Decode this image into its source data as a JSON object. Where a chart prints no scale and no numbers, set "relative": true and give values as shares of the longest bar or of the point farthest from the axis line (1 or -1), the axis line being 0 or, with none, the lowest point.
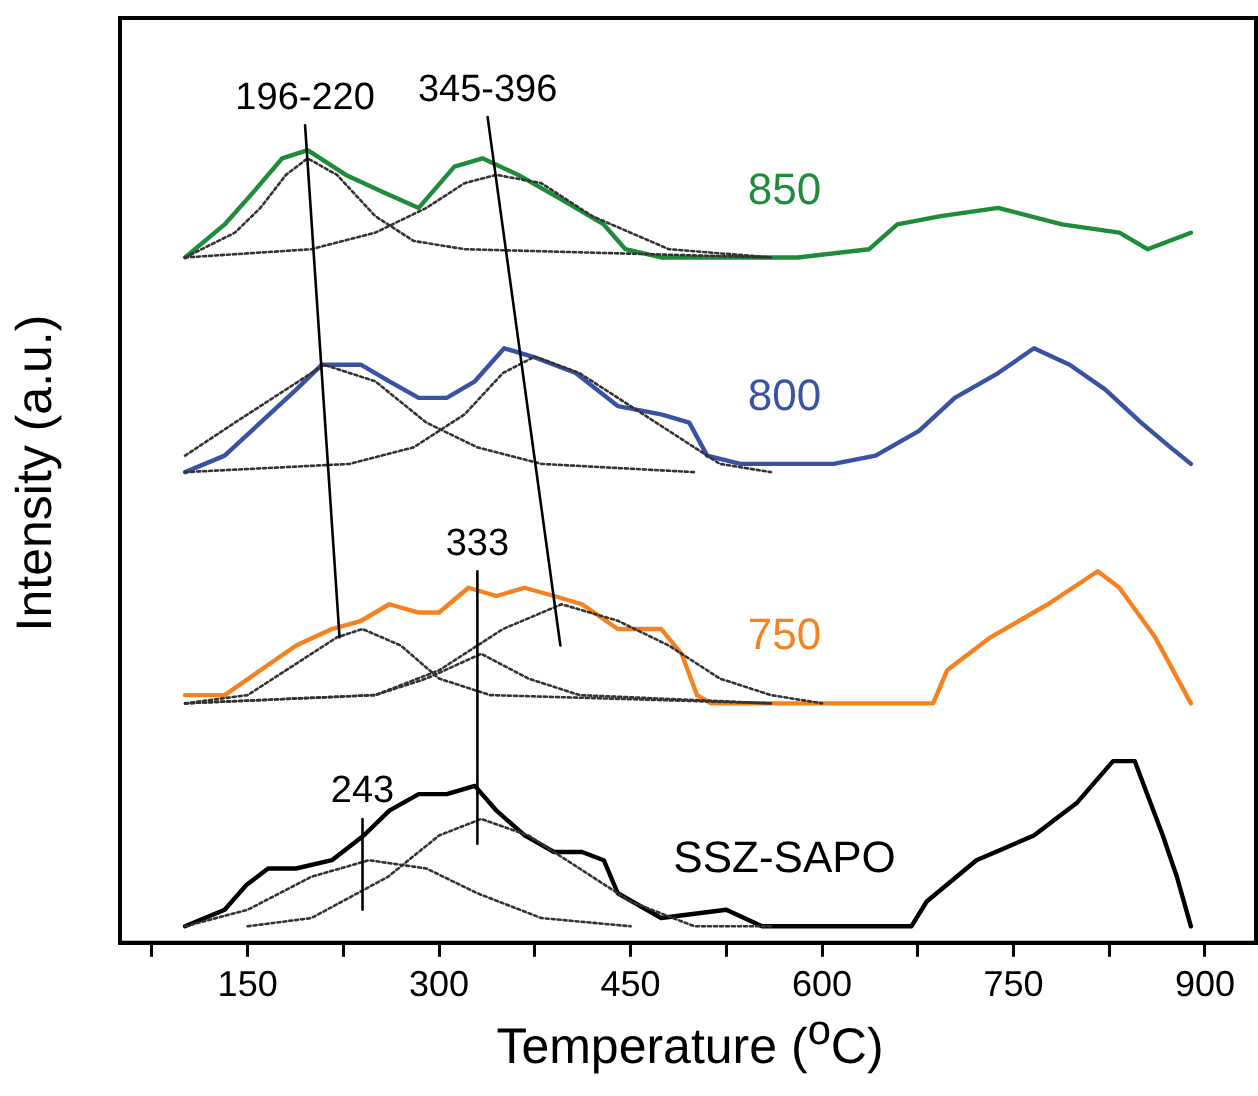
{
  "chart_data": {
    "type": "line",
    "relative": true,
    "xlabel": "Temperature ($^{o}$C)",
    "ylabel": "Intensity (a.u.)",
    "xlim": [
      50,
      940
    ],
    "xticks": [
      {
        "value": 75,
        "label": null
      },
      150,
      {
        "value": 225,
        "label": null
      },
      300,
      {
        "value": 375,
        "label": null
      },
      450,
      {
        "value": 525,
        "label": null
      },
      600,
      {
        "value": 675,
        "label": null
      },
      750,
      {
        "value": 825,
        "label": null
      },
      900
    ],
    "grid": false,
    "legend": false,
    "series": [
      {
        "name": "850",
        "color": "#1e8c3a",
        "line_style": "solid",
        "x": [
          101,
          132,
          155,
          177,
          197,
          227,
          255,
          284,
          312,
          334,
          362,
          396,
          429,
          446,
          474,
          525,
          581,
          637,
          659,
          693,
          738,
          788,
          833,
          855,
          889
        ],
        "values": [
          0.83,
          0.87,
          0.91,
          0.95,
          0.96,
          0.93,
          0.91,
          0.89,
          0.94,
          0.95,
          0.93,
          0.9,
          0.87,
          0.84,
          0.83,
          0.83,
          0.83,
          0.84,
          0.87,
          0.88,
          0.89,
          0.87,
          0.86,
          0.84,
          0.86
        ]
      },
      {
        "name": "800",
        "color": "#3a52a4",
        "line_style": "solid",
        "x": [
          101,
          132,
          160,
          188,
          208,
          239,
          261,
          284,
          306,
          328,
          351,
          373,
          407,
          440,
          474,
          496,
          510,
          536,
          581,
          609,
          642,
          676,
          704,
          738,
          766,
          794,
          822,
          850,
          873,
          889
        ],
        "values": [
          0.57,
          0.59,
          0.63,
          0.67,
          0.7,
          0.7,
          0.68,
          0.66,
          0.66,
          0.68,
          0.72,
          0.71,
          0.69,
          0.65,
          0.64,
          0.63,
          0.59,
          0.58,
          0.58,
          0.58,
          0.59,
          0.62,
          0.66,
          0.69,
          0.72,
          0.7,
          0.67,
          0.63,
          0.6,
          0.58
        ]
      },
      {
        "name": "750",
        "color": "#f58220",
        "line_style": "solid",
        "x": [
          101,
          132,
          160,
          188,
          216,
          239,
          261,
          284,
          300,
          323,
          345,
          367,
          390,
          412,
          440,
          474,
          490,
          502,
          513,
          552,
          609,
          665,
          687,
          698,
          732,
          777,
          816,
          833,
          861,
          889
        ],
        "values": [
          0.3,
          0.3,
          0.33,
          0.36,
          0.38,
          0.39,
          0.41,
          0.4,
          0.4,
          0.43,
          0.42,
          0.43,
          0.42,
          0.41,
          0.38,
          0.38,
          0.35,
          0.3,
          0.29,
          0.29,
          0.29,
          0.29,
          0.29,
          0.33,
          0.37,
          0.41,
          0.45,
          0.43,
          0.37,
          0.29
        ]
      },
      {
        "name": "SSZ-SAPO",
        "color": "#000000",
        "line_style": "solid",
        "x": [
          101,
          132,
          149,
          166,
          188,
          216,
          241,
          261,
          284,
          306,
          328,
          345,
          367,
          390,
          412,
          429,
          440,
          474,
          525,
          553,
          581,
          637,
          670,
          682,
          721,
          766,
          800,
          828,
          845,
          867,
          878,
          889
        ],
        "values": [
          0.02,
          0.04,
          0.07,
          0.09,
          0.09,
          0.1,
          0.13,
          0.16,
          0.18,
          0.18,
          0.19,
          0.16,
          0.13,
          0.11,
          0.11,
          0.1,
          0.06,
          0.03,
          0.04,
          0.02,
          0.02,
          0.02,
          0.02,
          0.05,
          0.1,
          0.13,
          0.17,
          0.22,
          0.22,
          0.13,
          0.08,
          0.02
        ]
      },
      {
        "color": "#333333",
        "line_style": "dotted",
        "x": [
          101,
          140,
          160,
          180,
          197,
          220,
          250,
          280,
          320,
          560
        ],
        "values": [
          0.83,
          0.86,
          0.89,
          0.93,
          0.95,
          0.93,
          0.88,
          0.85,
          0.84,
          0.83
        ]
      },
      {
        "color": "#333333",
        "line_style": "dotted",
        "x": [
          101,
          200,
          250,
          290,
          320,
          345,
          380,
          420,
          450,
          480,
          560
        ],
        "values": [
          0.83,
          0.84,
          0.86,
          0.89,
          0.92,
          0.93,
          0.92,
          0.88,
          0.86,
          0.84,
          0.83
        ]
      },
      {
        "color": "#333333",
        "line_style": "dotted",
        "x": [
          101,
          140,
          180,
          210,
          250,
          290,
          330,
          380,
          500
        ],
        "values": [
          0.59,
          0.63,
          0.67,
          0.7,
          0.68,
          0.63,
          0.6,
          0.58,
          0.57
        ]
      },
      {
        "color": "#333333",
        "line_style": "dotted",
        "x": [
          101,
          230,
          280,
          320,
          350,
          375,
          410,
          450,
          490,
          520,
          560
        ],
        "values": [
          0.57,
          0.58,
          0.6,
          0.64,
          0.69,
          0.71,
          0.69,
          0.65,
          0.61,
          0.58,
          0.57
        ]
      },
      {
        "color": "#333333",
        "line_style": "dotted",
        "x": [
          101,
          150,
          190,
          220,
          240,
          270,
          300,
          340,
          560
        ],
        "values": [
          0.29,
          0.3,
          0.34,
          0.37,
          0.38,
          0.36,
          0.32,
          0.3,
          0.29
        ]
      },
      {
        "color": "#333333",
        "line_style": "dotted",
        "x": [
          101,
          250,
          290,
          333,
          370,
          410,
          560
        ],
        "values": [
          0.29,
          0.3,
          0.32,
          0.35,
          0.32,
          0.3,
          0.29
        ]
      },
      {
        "color": "#333333",
        "line_style": "dotted",
        "x": [
          101,
          250,
          300,
          350,
          396,
          440,
          480,
          520,
          560,
          600
        ],
        "values": [
          0.29,
          0.3,
          0.33,
          0.38,
          0.41,
          0.39,
          0.36,
          0.32,
          0.3,
          0.29
        ]
      },
      {
        "color": "#333333",
        "line_style": "dotted",
        "x": [
          101,
          150,
          200,
          245,
          290,
          330,
          380,
          450
        ],
        "values": [
          0.02,
          0.04,
          0.08,
          0.1,
          0.09,
          0.06,
          0.03,
          0.02
        ]
      },
      {
        "color": "#333333",
        "line_style": "dotted",
        "x": [
          150,
          200,
          260,
          300,
          333,
          370,
          410,
          450,
          500,
          560
        ],
        "values": [
          0.02,
          0.03,
          0.08,
          0.13,
          0.15,
          0.13,
          0.09,
          0.05,
          0.02,
          0.02
        ]
      },
      {
        "color": "#000000",
        "line_style": "solid",
        "x": [
          195,
          222
        ],
        "values": [
          0.99,
          0.37
        ]
      },
      {
        "color": "#000000",
        "line_style": "solid",
        "x": [
          338,
          395
        ],
        "values": [
          1,
          0.36
        ]
      },
      {
        "color": "#000000",
        "line_style": "solid",
        "x": [
          330,
          330
        ],
        "values": [
          0.45,
          0.12
        ]
      },
      {
        "color": "#000000",
        "line_style": "solid",
        "x": [
          240,
          240
        ],
        "values": [
          0.15,
          0.04
        ]
      }
    ],
    "annotations": [
      {
        "text": "196-220",
        "x": 195,
        "y": 0.99
      },
      {
        "text": "345-396",
        "x": 338,
        "y": 1
      },
      {
        "text": "333",
        "x": 330,
        "y": 0.45
      },
      {
        "text": "243",
        "x": 240,
        "y": 0.15
      }
    ]
  }
}
